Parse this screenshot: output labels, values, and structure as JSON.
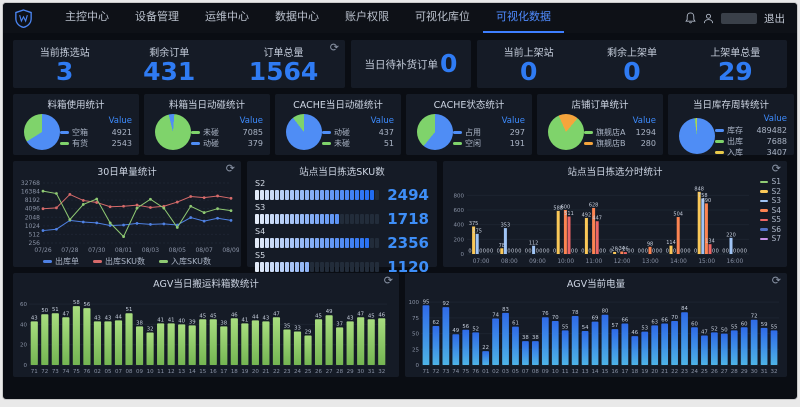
{
  "nav": {
    "items": [
      {
        "label": "主控中心",
        "active": false
      },
      {
        "label": "设备管理",
        "active": false
      },
      {
        "label": "运维中心",
        "active": false
      },
      {
        "label": "数据中心",
        "active": false
      },
      {
        "label": "账户权限",
        "active": false
      },
      {
        "label": "可视化库位",
        "active": false
      },
      {
        "label": "可视化数据",
        "active": true
      }
    ],
    "logout_label": "退出"
  },
  "colors": {
    "accent": "#3d7eff",
    "big_number": "#2f7bf3",
    "panel_bg": "#151b26",
    "page_bg": "#0a0d13"
  },
  "stats": {
    "pick_group": [
      {
        "label": "当前拣选站",
        "value": "3"
      },
      {
        "label": "剩余订单",
        "value": "431"
      },
      {
        "label": "订单总量",
        "value": "1564"
      }
    ],
    "replenish": {
      "label": "当日待补货订单",
      "value": "0"
    },
    "shelf_group": [
      {
        "label": "当前上架站",
        "value": "0"
      },
      {
        "label": "剩余上架单",
        "value": "0"
      },
      {
        "label": "上架单总量",
        "value": "29"
      }
    ]
  },
  "pies": [
    {
      "title": "料箱使用统计",
      "value_header": "Value",
      "slices": [
        {
          "label": "空箱",
          "value": 4921,
          "color": "#4f8df5"
        },
        {
          "label": "有货",
          "value": 2543,
          "color": "#7fd36b"
        }
      ],
      "from": -122,
      "order": [
        1,
        0
      ]
    },
    {
      "title": "料箱当日动碰统计",
      "value_header": "Value",
      "slices": [
        {
          "label": "未碰",
          "value": 7085,
          "color": "#7fd36b"
        },
        {
          "label": "动碰",
          "value": 379,
          "color": "#4f8df5"
        }
      ],
      "from": -14,
      "order": [
        1,
        0
      ]
    },
    {
      "title": "CACHE当日动碰统计",
      "value_header": "Value",
      "slices": [
        {
          "label": "动碰",
          "value": 437,
          "color": "#4f8df5"
        },
        {
          "label": "未碰",
          "value": 51,
          "color": "#7fd36b"
        }
      ],
      "from": -38,
      "order": [
        1,
        0
      ]
    },
    {
      "title": "CACHE状态统计",
      "value_header": "Value",
      "slices": [
        {
          "label": "占用",
          "value": 297,
          "color": "#4f8df5"
        },
        {
          "label": "空闲",
          "value": 191,
          "color": "#7fd36b"
        }
      ],
      "from": 0,
      "order": [
        0,
        1
      ]
    },
    {
      "title": "店铺订单统计",
      "value_header": "Value",
      "slices": [
        {
          "label": "旗舰店A",
          "value": 1294,
          "color": "#7fd36b"
        },
        {
          "label": "旗舰店B",
          "value": 280,
          "color": "#f5a43c"
        }
      ],
      "from": -24,
      "order": [
        1,
        0
      ]
    },
    {
      "title": "当日库存周转统计",
      "value_header": "Value",
      "slices": [
        {
          "label": "库存",
          "value": 489482,
          "color": "#4f8df5"
        },
        {
          "label": "出库",
          "value": 7688,
          "color": "#7fd36b"
        },
        {
          "label": "入库",
          "value": 3407,
          "color": "#e8c94a"
        }
      ],
      "from": -8,
      "order": [
        1,
        2,
        0
      ]
    }
  ],
  "line_chart": {
    "type": "line",
    "title": "30日单量统计",
    "y_ticks": [
      256,
      512,
      1024,
      2048,
      4096,
      8192,
      16384,
      32768
    ],
    "x": [
      "07/26",
      "07/27",
      "07/28",
      "07/29",
      "07/30",
      "07/31",
      "08/01",
      "08/02",
      "08/03",
      "08/04",
      "08/05",
      "08/06",
      "08/07",
      "08/08",
      "08/09"
    ],
    "series": [
      {
        "name": "出库单",
        "color": "#4f81e3",
        "values": [
          700,
          780,
          1600,
          1400,
          1300,
          1050,
          1100,
          1250,
          1150,
          1200,
          1100,
          2000,
          1500,
          1900,
          1600
        ]
      },
      {
        "name": "出库SKU数",
        "color": "#d66a6a",
        "values": [
          4100,
          4400,
          13000,
          8000,
          6800,
          4800,
          5000,
          5500,
          4500,
          5000,
          7000,
          11000,
          10000,
          11500,
          9500
        ]
      },
      {
        "name": "入库SKU数",
        "color": "#8fc973",
        "values": [
          17000,
          14000,
          1700,
          5800,
          9000,
          1300,
          430,
          4300,
          8800,
          4300,
          900,
          5000,
          3000,
          4100,
          3500
        ]
      }
    ]
  },
  "sku_panel": {
    "title": "站点当日拣选SKU数",
    "max": 2560,
    "segments": 25,
    "rows": [
      {
        "station": "S2",
        "value": 2494
      },
      {
        "station": "S3",
        "value": 1718
      },
      {
        "station": "S4",
        "value": 2356
      },
      {
        "station": "S5",
        "value": 1120
      }
    ]
  },
  "hourly_chart": {
    "type": "bar",
    "title": "站点当日拣选分时统计",
    "categories": [
      "07:00",
      "08:00",
      "09:00",
      "10:00",
      "11:00",
      "12:00",
      "13:00",
      "14:00",
      "15:00",
      "16:00"
    ],
    "y_ticks": [
      0,
      200,
      400,
      600,
      800
    ],
    "ylim": [
      0,
      900
    ],
    "series": [
      {
        "name": "S1",
        "color": "#91cc75",
        "values": [
          0,
          0,
          0,
          0,
          0,
          0,
          0,
          0,
          0,
          0
        ]
      },
      {
        "name": "S2",
        "color": "#fac858",
        "values": [
          375,
          78,
          0,
          588,
          492,
          28,
          0,
          114,
          848,
          0
        ]
      },
      {
        "name": "S3",
        "color": "#a0c4f5",
        "values": [
          275,
          353,
          112,
          0,
          0,
          0,
          0,
          0,
          758,
          220
        ]
      },
      {
        "name": "S4",
        "color": "#fc8452",
        "values": [
          0,
          0,
          0,
          600,
          628,
          34,
          98,
          504,
          690,
          0
        ]
      },
      {
        "name": "S5",
        "color": "#ee6666",
        "values": [
          0,
          0,
          0,
          511,
          447,
          26,
          0,
          0,
          134,
          0
        ]
      },
      {
        "name": "S6",
        "color": "#5470c6",
        "values": [
          0,
          0,
          0,
          0,
          0,
          0,
          0,
          0,
          0,
          0
        ]
      },
      {
        "name": "S7",
        "color": "#c792ea",
        "values": [
          0,
          0,
          0,
          0,
          0,
          0,
          0,
          0,
          0,
          0
        ]
      }
    ]
  },
  "agv_box_chart": {
    "type": "bar",
    "title": "AGV当日搬运料箱数统计",
    "y_ticks": [
      0,
      20,
      40,
      60
    ],
    "ylim": [
      0,
      65
    ],
    "categories": [
      "71",
      "72",
      "73",
      "74",
      "75",
      "76",
      "02",
      "05",
      "07",
      "08",
      "09",
      "10",
      "11",
      "12",
      "13",
      "14",
      "15",
      "16",
      "17",
      "18",
      "19",
      "20",
      "21",
      "22",
      "23",
      "24",
      "25",
      "26",
      "27",
      "28",
      "29",
      "30",
      "31",
      "32"
    ],
    "values": [
      43,
      50,
      51,
      47,
      58,
      56,
      43,
      43,
      44,
      51,
      38,
      32,
      41,
      41,
      40,
      39,
      45,
      45,
      38,
      46,
      41,
      44,
      43,
      47,
      35,
      33,
      29,
      45,
      49,
      37,
      43,
      47,
      45,
      46
    ],
    "bar_colors": [
      "#a8dd7f",
      "#74b552"
    ]
  },
  "agv_battery_chart": {
    "type": "bar",
    "title": "AGV当前电量",
    "y_ticks": [
      0,
      25,
      50,
      75,
      100
    ],
    "ylim": [
      0,
      105
    ],
    "categories": [
      "71",
      "72",
      "73",
      "74",
      "75",
      "76",
      "01",
      "02",
      "03",
      "05",
      "07",
      "08",
      "09",
      "10",
      "11",
      "12",
      "13",
      "14",
      "15",
      "16",
      "17",
      "18",
      "19",
      "20",
      "21",
      "22",
      "23",
      "24",
      "25",
      "26",
      "27",
      "28",
      "29",
      "30",
      "31",
      "32"
    ],
    "values": [
      95,
      62,
      92,
      49,
      56,
      52,
      22,
      74,
      83,
      61,
      38,
      38,
      76,
      70,
      55,
      78,
      54,
      69,
      80,
      57,
      66,
      46,
      53,
      63,
      66,
      70,
      84,
      60,
      47,
      52,
      50,
      55,
      60,
      72,
      59,
      55
    ],
    "bar_colors": [
      "#2f6ae8",
      "#4db3e6"
    ]
  }
}
